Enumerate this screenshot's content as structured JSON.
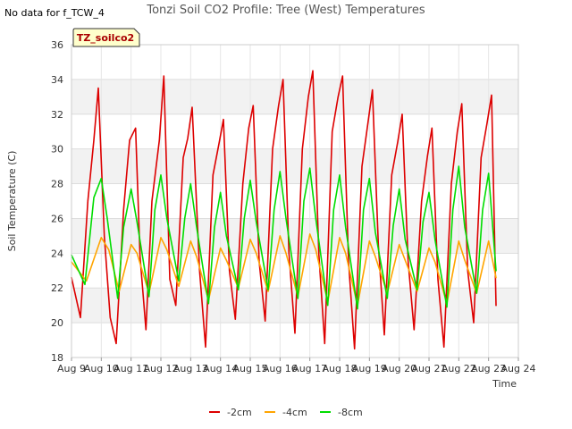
{
  "no_data_note": "No data for f_TCW_4",
  "badge_label": "TZ_soilco2",
  "chart_data": {
    "type": "line",
    "title": "Tonzi Soil CO2 Profile: Tree (West) Temperatures",
    "xlabel": "Time",
    "ylabel": "Soil Temperature (C)",
    "xlim": [
      9,
      24
    ],
    "ylim": [
      18,
      36
    ],
    "x_ticks": [
      9,
      10,
      11,
      12,
      13,
      14,
      15,
      16,
      17,
      18,
      19,
      20,
      21,
      22,
      23,
      24
    ],
    "x_tick_labels": [
      "Aug 9",
      "Aug 10",
      "Aug 11",
      "Aug 12",
      "Aug 13",
      "Aug 14",
      "Aug 15",
      "Aug 16",
      "Aug 17",
      "Aug 18",
      "Aug 19",
      "Aug 20",
      "Aug 21",
      "Aug 22",
      "Aug 23",
      "Aug 24"
    ],
    "y_ticks": [
      18,
      20,
      22,
      24,
      26,
      28,
      30,
      32,
      34,
      36
    ],
    "y_tick_labels": [
      "18",
      "20",
      "22",
      "24",
      "26",
      "28",
      "30",
      "32",
      "34",
      "36"
    ],
    "grid": true,
    "legend_position": "bottom-center",
    "series": [
      {
        "name": "-2cm",
        "color": "#dd0000",
        "x": [
          9.0,
          9.3,
          9.55,
          9.75,
          9.9,
          10.1,
          10.3,
          10.5,
          10.75,
          10.95,
          11.15,
          11.3,
          11.5,
          11.7,
          11.95,
          12.1,
          12.3,
          12.5,
          12.75,
          12.9,
          13.05,
          13.3,
          13.5,
          13.75,
          13.95,
          14.1,
          14.3,
          14.5,
          14.75,
          14.95,
          15.1,
          15.3,
          15.5,
          15.75,
          15.95,
          16.1,
          16.3,
          16.5,
          16.75,
          16.95,
          17.1,
          17.3,
          17.5,
          17.75,
          17.95,
          18.1,
          18.3,
          18.5,
          18.75,
          18.95,
          19.1,
          19.3,
          19.5,
          19.75,
          19.95,
          20.1,
          20.3,
          20.5,
          20.75,
          20.95,
          21.1,
          21.3,
          21.5,
          21.75,
          21.95,
          22.1,
          22.3,
          22.5,
          22.75,
          22.95,
          23.1,
          23.25
        ],
        "y": [
          22.6,
          20.3,
          27.0,
          30.5,
          33.5,
          25.0,
          20.3,
          18.8,
          26.5,
          30.5,
          31.2,
          23.8,
          19.6,
          27.0,
          30.5,
          34.2,
          22.5,
          21.0,
          29.5,
          30.6,
          32.4,
          23.0,
          18.6,
          28.5,
          30.3,
          31.7,
          23.0,
          20.2,
          28.0,
          31.2,
          32.5,
          23.5,
          20.1,
          30.0,
          32.5,
          34.0,
          24.0,
          19.4,
          30.0,
          33.0,
          34.5,
          24.0,
          18.8,
          31.0,
          33.0,
          34.2,
          23.5,
          18.5,
          29.0,
          31.5,
          33.4,
          24.5,
          19.3,
          28.5,
          30.4,
          32.0,
          23.5,
          19.6,
          27.0,
          29.6,
          31.2,
          22.5,
          18.6,
          28.0,
          31.0,
          32.6,
          23.0,
          20.0,
          29.5,
          31.5,
          33.1,
          21.0
        ]
      },
      {
        "name": "-4cm",
        "color": "#ffa500",
        "x": [
          9.0,
          9.5,
          10.0,
          10.25,
          10.6,
          11.0,
          11.2,
          11.6,
          12.0,
          12.2,
          12.6,
          13.0,
          13.2,
          13.6,
          14.0,
          14.2,
          14.6,
          15.0,
          15.2,
          15.6,
          16.0,
          16.2,
          16.6,
          17.0,
          17.2,
          17.6,
          18.0,
          18.2,
          18.6,
          19.0,
          19.2,
          19.6,
          20.0,
          20.2,
          20.6,
          21.0,
          21.2,
          21.6,
          22.0,
          22.2,
          22.6,
          23.0,
          23.25
        ],
        "y": [
          23.5,
          22.4,
          24.9,
          24.2,
          21.8,
          24.5,
          24.0,
          21.7,
          24.9,
          24.2,
          22.1,
          24.7,
          23.8,
          21.3,
          24.3,
          23.6,
          22.0,
          24.8,
          24.0,
          21.8,
          25.0,
          24.0,
          21.5,
          25.1,
          24.2,
          21.2,
          24.9,
          24.0,
          21.0,
          24.7,
          23.8,
          21.7,
          24.5,
          23.6,
          21.8,
          24.3,
          23.5,
          21.1,
          24.7,
          23.6,
          21.7,
          24.7,
          22.6
        ]
      },
      {
        "name": "-8cm",
        "color": "#00dd00",
        "x": [
          9.0,
          9.45,
          9.75,
          10.0,
          10.2,
          10.55,
          10.75,
          11.0,
          11.2,
          11.6,
          11.8,
          12.0,
          12.2,
          12.6,
          12.8,
          13.0,
          13.2,
          13.6,
          13.8,
          14.0,
          14.2,
          14.6,
          14.8,
          15.0,
          15.2,
          15.6,
          15.8,
          16.0,
          16.2,
          16.6,
          16.8,
          17.0,
          17.2,
          17.6,
          17.8,
          18.0,
          18.2,
          18.6,
          18.8,
          19.0,
          19.2,
          19.6,
          19.8,
          20.0,
          20.2,
          20.6,
          20.8,
          21.0,
          21.2,
          21.6,
          21.8,
          22.0,
          22.2,
          22.6,
          22.8,
          23.0,
          23.25
        ],
        "y": [
          23.9,
          22.2,
          27.2,
          28.3,
          26.0,
          21.4,
          25.5,
          27.7,
          25.8,
          21.5,
          26.5,
          28.5,
          26.0,
          22.4,
          26.0,
          28.0,
          25.5,
          21.1,
          25.5,
          27.5,
          25.0,
          21.9,
          26.0,
          28.2,
          25.8,
          21.9,
          26.5,
          28.7,
          26.0,
          21.4,
          27.0,
          28.9,
          26.0,
          21.0,
          26.5,
          28.5,
          25.5,
          20.8,
          26.5,
          28.3,
          25.2,
          21.4,
          25.6,
          27.7,
          24.8,
          21.9,
          25.8,
          27.5,
          24.8,
          20.9,
          26.5,
          29.0,
          25.5,
          21.7,
          26.5,
          28.6,
          23.0
        ]
      }
    ]
  }
}
